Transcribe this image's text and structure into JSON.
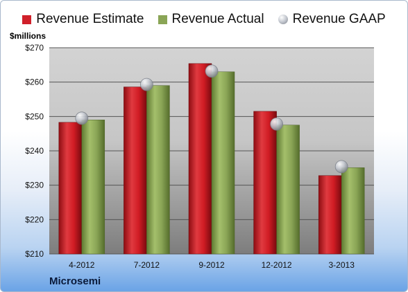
{
  "legend": {
    "estimate": "Revenue Estimate",
    "actual": "Revenue Actual",
    "gaap": "Revenue GAAP"
  },
  "unit_label": "$millions",
  "company": "Microsemi",
  "colors": {
    "estimate": "#d0202a",
    "actual": "#8aa556",
    "gaap": "#c3c7cf"
  },
  "chart_data": {
    "type": "bar",
    "categories": [
      "4-2012",
      "7-2012",
      "9-2012",
      "12-2012",
      "3-2013"
    ],
    "series": [
      {
        "name": "Revenue Estimate",
        "values": [
          248.3,
          258.6,
          265.4,
          251.5,
          232.8
        ]
      },
      {
        "name": "Revenue Actual",
        "values": [
          249.0,
          259.0,
          263.0,
          247.5,
          235.1
        ]
      },
      {
        "name": "Revenue GAAP",
        "values": [
          249.5,
          259.3,
          263.2,
          247.8,
          235.4
        ]
      }
    ],
    "ylim": [
      210,
      270
    ],
    "yticks": [
      210,
      220,
      230,
      240,
      250,
      260,
      270
    ],
    "ytick_labels": [
      "$210",
      "$220",
      "$230",
      "$240",
      "$250",
      "$260",
      "$270"
    ],
    "ylabel": "$millions",
    "grid": true,
    "legend_position": "top"
  }
}
